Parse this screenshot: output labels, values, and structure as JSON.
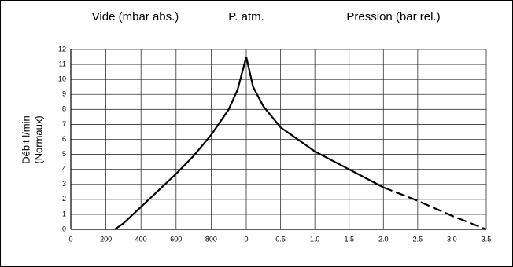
{
  "chart_data": {
    "type": "line",
    "xlabel": "Vide (mbar abs.)",
    "center_label": "P. atm.",
    "x2label": "Pression (bar rel.)",
    "ylabel": [
      "Débit l/min",
      "(Normaux)"
    ],
    "xlim": [
      0,
      1000
    ],
    "xticks": [
      0,
      200,
      400,
      600,
      800
    ],
    "x2lim": [
      0,
      3.5
    ],
    "x2ticks": [
      0,
      0.5,
      {
        "value": 1,
        "label": "1.0"
      },
      1.5,
      {
        "value": 2,
        "label": "2.0"
      },
      2.5,
      {
        "value": 3,
        "label": "3.0"
      },
      3.5
    ],
    "ylim": [
      0,
      12
    ],
    "yticks": [
      0,
      1,
      2,
      3,
      4,
      5,
      6,
      7,
      8,
      9,
      10,
      11,
      12
    ],
    "grid": true,
    "series": [
      {
        "color": "#000000",
        "xaxis": "x",
        "dashed": false,
        "x": [
          250,
          300,
          400,
          500,
          600,
          700,
          800,
          900,
          950,
          1000
        ],
        "values": [
          0,
          0.4,
          1.5,
          2.6,
          3.7,
          4.9,
          6.3,
          8.0,
          9.3,
          11.5
        ]
      },
      {
        "color": "#000000",
        "xaxis": "x2",
        "dashed": false,
        "x": [
          0,
          0.1,
          0.25,
          0.5,
          0.75,
          1.0,
          1.5,
          2.0
        ],
        "values": [
          11.5,
          9.5,
          8.2,
          6.8,
          6.0,
          5.2,
          4.0,
          2.8
        ]
      },
      {
        "color": "#000000",
        "xaxis": "x2",
        "dashed": true,
        "x": [
          2.0,
          2.5,
          3.0,
          3.5
        ],
        "values": [
          2.8,
          1.9,
          0.9,
          0
        ]
      }
    ]
  }
}
